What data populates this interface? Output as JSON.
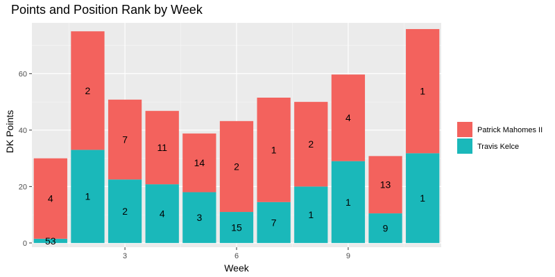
{
  "chart_data": {
    "type": "bar",
    "stacked": true,
    "title": "Points and Position Rank by Week",
    "xlabel": "Week",
    "ylabel": "DK Points",
    "x": [
      1,
      2,
      3,
      4,
      5,
      6,
      7,
      8,
      9,
      10,
      11
    ],
    "xlim": [
      0.5,
      11.5
    ],
    "x_ticks": [
      3,
      6,
      9
    ],
    "ylim": [
      -1.5,
      78
    ],
    "y_ticks": [
      0,
      20,
      40,
      60
    ],
    "grid": true,
    "legend_position": "right",
    "series": [
      {
        "name": "Travis Kelce",
        "color": "#1ab8ba",
        "values": [
          1.5,
          33.0,
          22.5,
          20.8,
          18.0,
          11.0,
          14.5,
          20.0,
          29.0,
          10.5,
          31.8
        ],
        "labels": [
          "53",
          "1",
          "2",
          "4",
          "3",
          "15",
          "7",
          "1",
          "1",
          "9",
          "1"
        ]
      },
      {
        "name": "Patrick Mahomes II",
        "color": "#f3625d",
        "values": [
          28.5,
          42.0,
          28.3,
          26.0,
          20.8,
          32.2,
          37.0,
          30.0,
          30.7,
          20.3,
          44.0
        ],
        "labels": [
          "4",
          "2",
          "7",
          "11",
          "14",
          "2",
          "1",
          "2",
          "4",
          "13",
          "1"
        ]
      }
    ]
  }
}
